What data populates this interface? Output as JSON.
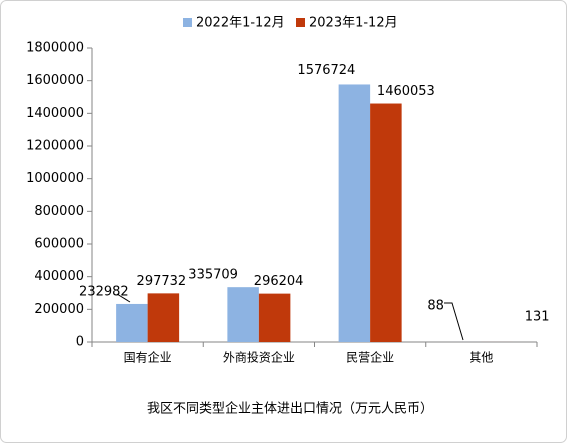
{
  "chart_data": {
    "type": "bar",
    "title": "我区不同类型企业主体进出口情况（万元人民币）",
    "categories": [
      "国有企业",
      "外商投资企业",
      "民营企业",
      "其他"
    ],
    "series": [
      {
        "name": "2022年1-12月",
        "color": "#8db3e2",
        "values": [
          232982,
          335709,
          1576724,
          88
        ]
      },
      {
        "name": "2023年1-12月",
        "color": "#c0390b",
        "values": [
          297732,
          296204,
          1460053,
          131
        ]
      }
    ],
    "ylim": [
      0,
      1800000
    ],
    "yticks": [
      0,
      200000,
      400000,
      600000,
      800000,
      1000000,
      1200000,
      1400000,
      1600000,
      1800000
    ],
    "legend": "top"
  }
}
